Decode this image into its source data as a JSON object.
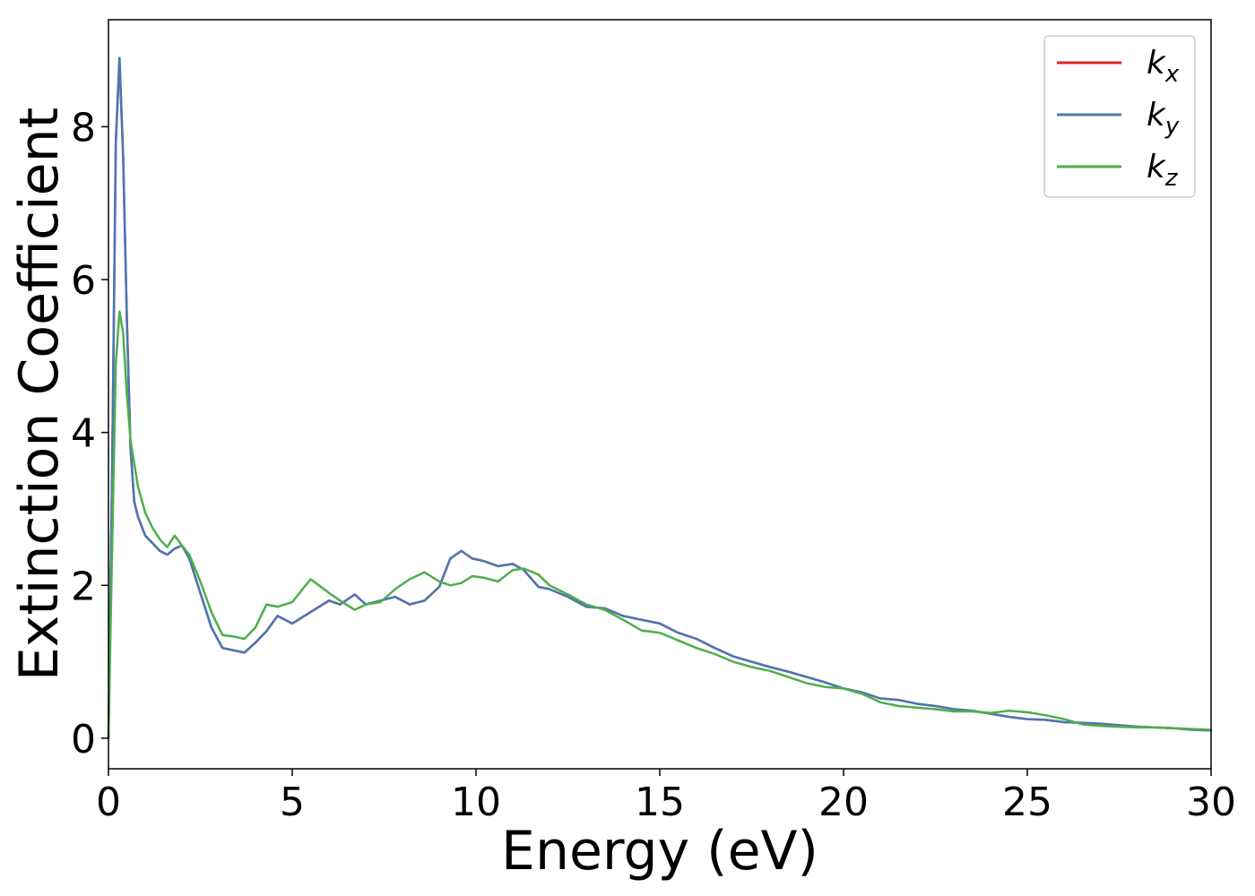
{
  "chart_data": {
    "type": "line",
    "title": "",
    "xlabel": "Energy (eV)",
    "ylabel": "Extinction Coefficient",
    "xlim": [
      0,
      30
    ],
    "ylim": [
      -0.4,
      9.4
    ],
    "xticks": [
      0,
      5,
      10,
      15,
      20,
      25,
      30
    ],
    "yticks": [
      0,
      2,
      4,
      6,
      8
    ],
    "grid": false,
    "legend_position": "top-right",
    "series": [
      {
        "name": "k_x",
        "legend_base": "k",
        "legend_sub": "x",
        "color": "#d62728",
        "x": [
          0,
          0.1,
          0.2,
          0.3,
          0.4,
          0.5,
          0.6,
          0.7,
          0.8,
          1.0,
          1.2,
          1.4,
          1.6,
          1.8,
          2.0,
          2.2,
          2.5,
          2.8,
          3.1,
          3.4,
          3.7,
          4.0,
          4.3,
          4.6,
          5.0,
          5.5,
          6.0,
          6.3,
          6.7,
          7.0,
          7.4,
          7.8,
          8.2,
          8.6,
          9.0,
          9.3,
          9.6,
          9.9,
          10.2,
          10.6,
          11.0,
          11.3,
          11.7,
          12.0,
          12.5,
          13.0,
          13.5,
          14.0,
          14.5,
          15.0,
          15.5,
          16.0,
          16.5,
          17.0,
          17.5,
          18.0,
          18.5,
          19.0,
          19.5,
          20.0,
          20.5,
          21.0,
          21.5,
          22.0,
          22.5,
          23.0,
          23.5,
          24.0,
          24.5,
          25.0,
          25.5,
          26.0,
          26.5,
          27.0,
          27.5,
          28.0,
          28.5,
          29.0,
          29.5,
          30.0
        ],
        "y": [
          0.0,
          3.5,
          7.8,
          8.9,
          7.6,
          5.5,
          3.8,
          3.1,
          2.9,
          2.65,
          2.55,
          2.45,
          2.4,
          2.48,
          2.52,
          2.35,
          1.9,
          1.45,
          1.18,
          1.15,
          1.12,
          1.25,
          1.4,
          1.6,
          1.5,
          1.65,
          1.8,
          1.75,
          1.88,
          1.75,
          1.8,
          1.85,
          1.75,
          1.8,
          1.98,
          2.35,
          2.45,
          2.35,
          2.32,
          2.25,
          2.28,
          2.2,
          1.98,
          1.95,
          1.85,
          1.72,
          1.7,
          1.6,
          1.55,
          1.5,
          1.38,
          1.3,
          1.18,
          1.07,
          1.0,
          0.93,
          0.87,
          0.8,
          0.73,
          0.65,
          0.6,
          0.52,
          0.5,
          0.45,
          0.42,
          0.38,
          0.36,
          0.32,
          0.28,
          0.25,
          0.24,
          0.21,
          0.2,
          0.19,
          0.17,
          0.15,
          0.14,
          0.13,
          0.11,
          0.1
        ]
      },
      {
        "name": "k_y",
        "legend_base": "k",
        "legend_sub": "y",
        "color": "#4a77b4",
        "x": [
          0,
          0.1,
          0.2,
          0.3,
          0.4,
          0.5,
          0.6,
          0.7,
          0.8,
          1.0,
          1.2,
          1.4,
          1.6,
          1.8,
          2.0,
          2.2,
          2.5,
          2.8,
          3.1,
          3.4,
          3.7,
          4.0,
          4.3,
          4.6,
          5.0,
          5.5,
          6.0,
          6.3,
          6.7,
          7.0,
          7.4,
          7.8,
          8.2,
          8.6,
          9.0,
          9.3,
          9.6,
          9.9,
          10.2,
          10.6,
          11.0,
          11.3,
          11.7,
          12.0,
          12.5,
          13.0,
          13.5,
          14.0,
          14.5,
          15.0,
          15.5,
          16.0,
          16.5,
          17.0,
          17.5,
          18.0,
          18.5,
          19.0,
          19.5,
          20.0,
          20.5,
          21.0,
          21.5,
          22.0,
          22.5,
          23.0,
          23.5,
          24.0,
          24.5,
          25.0,
          25.5,
          26.0,
          26.5,
          27.0,
          27.5,
          28.0,
          28.5,
          29.0,
          29.5,
          30.0
        ],
        "y": [
          0.0,
          3.5,
          7.8,
          8.9,
          7.6,
          5.5,
          3.8,
          3.1,
          2.9,
          2.65,
          2.55,
          2.45,
          2.4,
          2.48,
          2.52,
          2.35,
          1.9,
          1.45,
          1.18,
          1.15,
          1.12,
          1.25,
          1.4,
          1.6,
          1.5,
          1.65,
          1.8,
          1.75,
          1.88,
          1.75,
          1.8,
          1.85,
          1.75,
          1.8,
          1.98,
          2.35,
          2.45,
          2.35,
          2.32,
          2.25,
          2.28,
          2.2,
          1.98,
          1.95,
          1.85,
          1.72,
          1.7,
          1.6,
          1.55,
          1.5,
          1.38,
          1.3,
          1.18,
          1.07,
          1.0,
          0.93,
          0.87,
          0.8,
          0.73,
          0.65,
          0.6,
          0.52,
          0.5,
          0.45,
          0.42,
          0.38,
          0.36,
          0.32,
          0.28,
          0.25,
          0.24,
          0.21,
          0.2,
          0.19,
          0.17,
          0.15,
          0.14,
          0.13,
          0.11,
          0.1
        ]
      },
      {
        "name": "k_z",
        "legend_base": "k",
        "legend_sub": "z",
        "color": "#4daf4a",
        "x": [
          0,
          0.1,
          0.2,
          0.3,
          0.4,
          0.5,
          0.6,
          0.7,
          0.8,
          1.0,
          1.2,
          1.4,
          1.6,
          1.8,
          2.0,
          2.2,
          2.5,
          2.8,
          3.1,
          3.4,
          3.7,
          4.0,
          4.3,
          4.6,
          5.0,
          5.5,
          6.0,
          6.3,
          6.7,
          7.0,
          7.4,
          7.8,
          8.2,
          8.6,
          9.0,
          9.3,
          9.6,
          9.9,
          10.2,
          10.6,
          11.0,
          11.3,
          11.7,
          12.0,
          12.5,
          13.0,
          13.5,
          14.0,
          14.5,
          15.0,
          15.5,
          16.0,
          16.5,
          17.0,
          17.5,
          18.0,
          18.5,
          19.0,
          19.5,
          20.0,
          20.5,
          21.0,
          21.5,
          22.0,
          22.5,
          23.0,
          23.5,
          24.0,
          24.5,
          25.0,
          25.5,
          26.0,
          26.5,
          27.0,
          27.5,
          28.0,
          28.5,
          29.0,
          29.5,
          30.0
        ],
        "y": [
          0.0,
          2.5,
          4.9,
          5.58,
          5.3,
          4.5,
          3.9,
          3.6,
          3.3,
          2.95,
          2.75,
          2.6,
          2.5,
          2.65,
          2.52,
          2.4,
          2.05,
          1.65,
          1.35,
          1.33,
          1.3,
          1.45,
          1.75,
          1.72,
          1.78,
          2.08,
          1.9,
          1.8,
          1.68,
          1.75,
          1.78,
          1.95,
          2.08,
          2.17,
          2.05,
          2.0,
          2.03,
          2.12,
          2.1,
          2.05,
          2.2,
          2.22,
          2.14,
          2.0,
          1.88,
          1.75,
          1.68,
          1.55,
          1.41,
          1.38,
          1.28,
          1.18,
          1.1,
          1.0,
          0.93,
          0.88,
          0.8,
          0.72,
          0.67,
          0.65,
          0.58,
          0.47,
          0.42,
          0.4,
          0.38,
          0.35,
          0.35,
          0.33,
          0.36,
          0.34,
          0.3,
          0.25,
          0.18,
          0.16,
          0.15,
          0.14,
          0.14,
          0.13,
          0.12,
          0.11
        ]
      }
    ]
  }
}
